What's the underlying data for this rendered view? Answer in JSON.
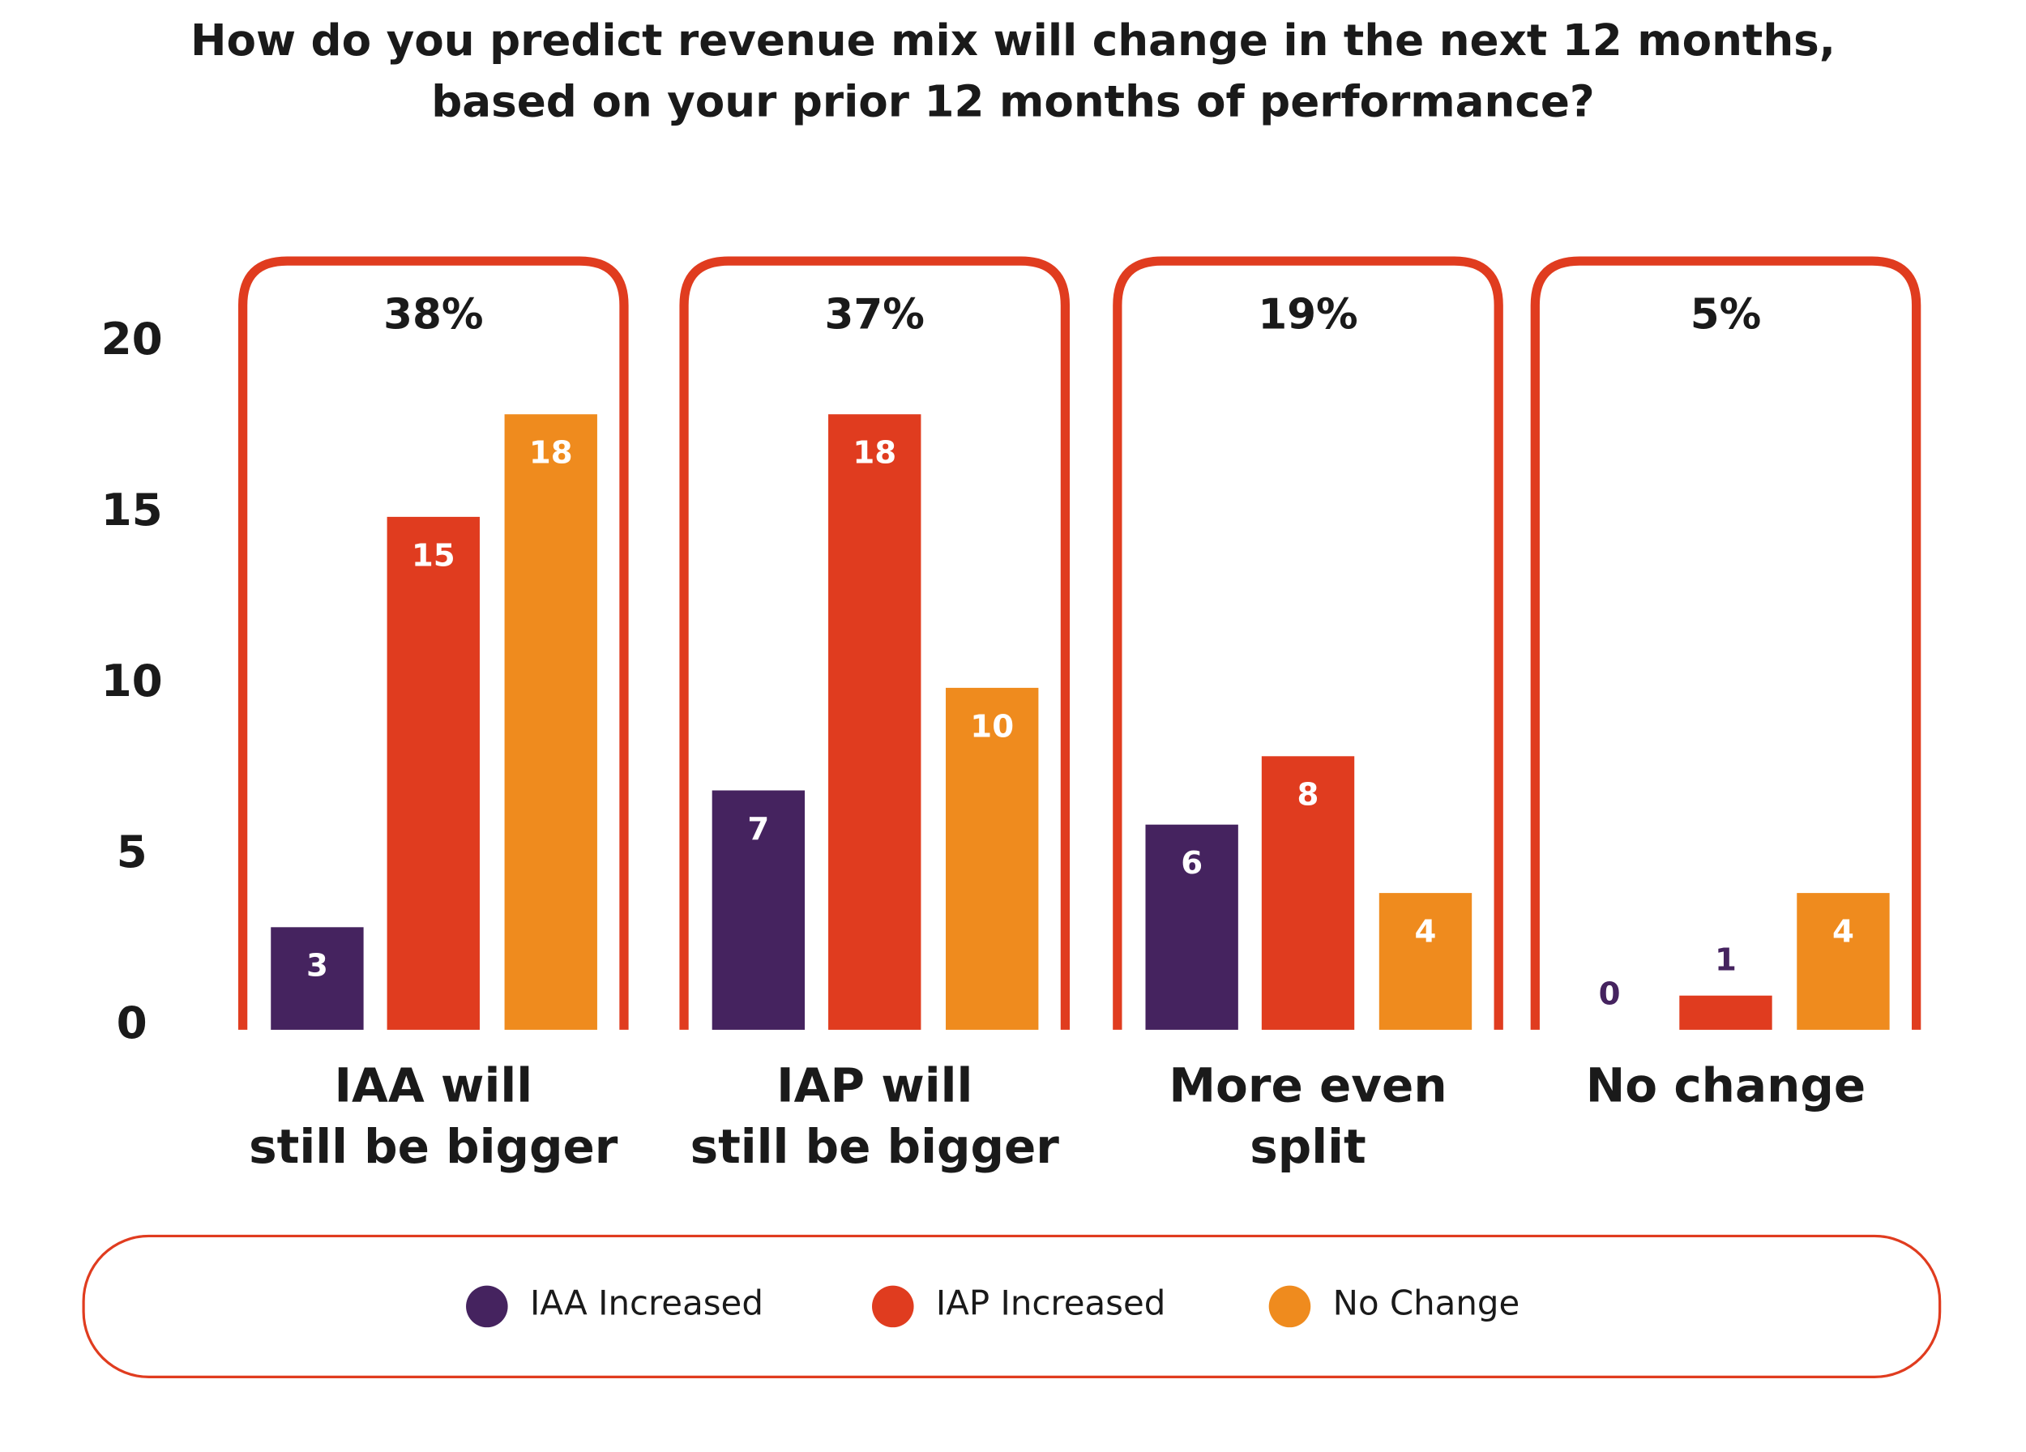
{
  "chart_data": {
    "type": "bar",
    "title": [
      "How do you predict revenue mix will change in the next 12 months,",
      "based on your prior 12 months of performance?"
    ],
    "categories": [
      [
        "IAA will",
        "still be bigger"
      ],
      [
        "IAP will",
        "still be bigger"
      ],
      [
        "More even",
        "split"
      ],
      [
        "No change"
      ]
    ],
    "group_percent": {
      "values": [
        38,
        37,
        19,
        5
      ],
      "value_labels": [
        "38%",
        "37%",
        "19%",
        "5%"
      ]
    },
    "series": [
      {
        "name": "IAA Increased",
        "color": "#45235f",
        "values": [
          3,
          7,
          6,
          0
        ]
      },
      {
        "name": "IAP Increased",
        "color": "#e03c1f",
        "values": [
          15,
          18,
          8,
          1
        ]
      },
      {
        "name": "No Change",
        "color": "#ef8b1e",
        "values": [
          18,
          10,
          4,
          4
        ]
      }
    ],
    "ylim": [
      0,
      20
    ],
    "yticks": [
      0,
      5,
      10,
      15,
      20
    ],
    "grid": false,
    "frame_color": "#e03c1f"
  }
}
